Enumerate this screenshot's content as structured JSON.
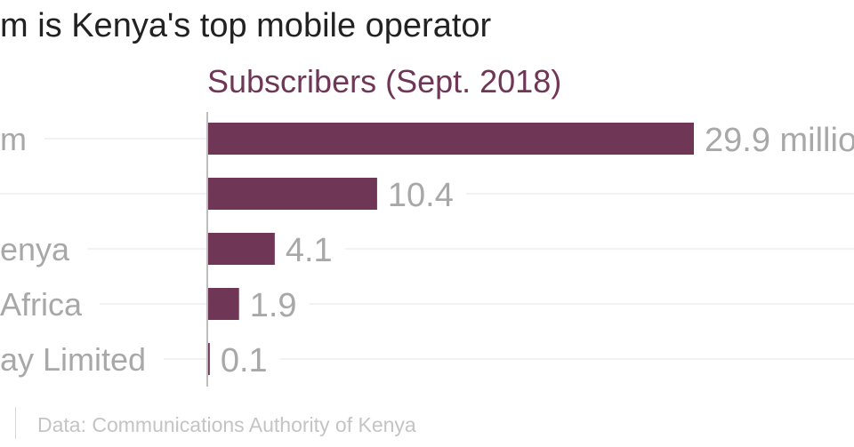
{
  "title": "m is Kenya's top mobile operator",
  "source": "Data: Communications Authority of Kenya",
  "colors": {
    "bar": "#6f3656",
    "series_label": "#6f3656",
    "category_text": "#a8a8a8",
    "value_text": "#a8a8a8",
    "grid": "#e6e6e6",
    "axis": "#a8a8a8"
  },
  "chart_data": {
    "type": "bar",
    "orientation": "horizontal",
    "title": "m is Kenya's top mobile operator",
    "series_label": "Subscribers (Sept. 2018)",
    "categories": [
      "m",
      "",
      "enya",
      "Africa",
      "ay Limited"
    ],
    "values": [
      29.9,
      10.4,
      4.1,
      1.9,
      0.1
    ],
    "value_labels": [
      "29.9 millio",
      "10.4",
      "4.1",
      "1.9",
      "0.1"
    ],
    "unit": "million",
    "xlim": [
      0,
      29.9
    ],
    "grid": true
  }
}
